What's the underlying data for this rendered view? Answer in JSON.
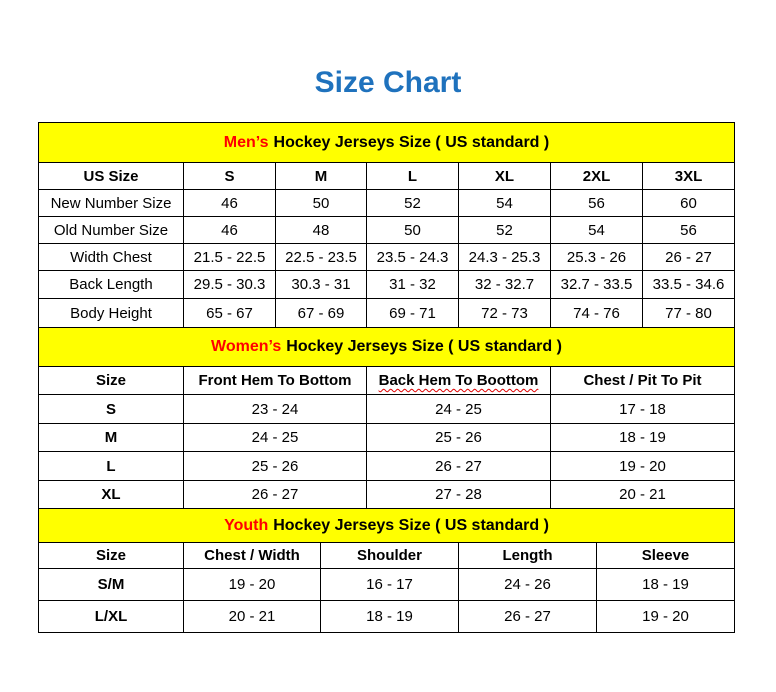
{
  "title": "Size Chart",
  "colors": {
    "title": "#1f72bd",
    "section_header_bg": "#ffff00",
    "section_accent": "#ff0000"
  },
  "mens": {
    "accent": "Men’s",
    "heading": "Hockey Jerseys Size ( US standard )",
    "columns": [
      "US Size",
      "S",
      "M",
      "L",
      "XL",
      "2XL",
      "3XL"
    ],
    "rows": [
      [
        "New Number Size",
        "46",
        "50",
        "52",
        "54",
        "56",
        "60"
      ],
      [
        "Old Number Size",
        "46",
        "48",
        "50",
        "52",
        "54",
        "56"
      ],
      [
        "Width Chest",
        "21.5 - 22.5",
        "22.5 - 23.5",
        "23.5 - 24.3",
        "24.3 - 25.3",
        "25.3 - 26",
        "26 - 27"
      ],
      [
        "Back Length",
        "29.5 - 30.3",
        "30.3 - 31",
        "31 - 32",
        "32 - 32.7",
        "32.7 - 33.5",
        "33.5 - 34.6"
      ],
      [
        "Body Height",
        "65 - 67",
        "67 - 69",
        "69 - 71",
        "72 - 73",
        "74 - 76",
        "77 - 80"
      ]
    ]
  },
  "womens": {
    "accent": "Women’s",
    "heading": "Hockey Jerseys Size ( US standard )",
    "columns": [
      "Size",
      "Front Hem To Bottom",
      "Back Hem To Boottom",
      "Chest / Pit To Pit"
    ],
    "rows": [
      [
        "S",
        "23 - 24",
        "24 - 25",
        "17 - 18"
      ],
      [
        "M",
        "24 - 25",
        "25 - 26",
        "18 - 19"
      ],
      [
        "L",
        "25 - 26",
        "26 - 27",
        "19 - 20"
      ],
      [
        "XL",
        "26 - 27",
        "27 - 28",
        "20 - 21"
      ]
    ]
  },
  "youth": {
    "accent": "Youth",
    "heading": "Hockey Jerseys Size ( US standard )",
    "columns": [
      "Size",
      "Chest / Width",
      "Shoulder",
      "Length",
      "Sleeve"
    ],
    "rows": [
      [
        "S/M",
        "19 - 20",
        "16 - 17",
        "24 - 26",
        "18 - 19"
      ],
      [
        "L/XL",
        "20 - 21",
        "18 - 19",
        "26 - 27",
        "19 - 20"
      ]
    ]
  }
}
